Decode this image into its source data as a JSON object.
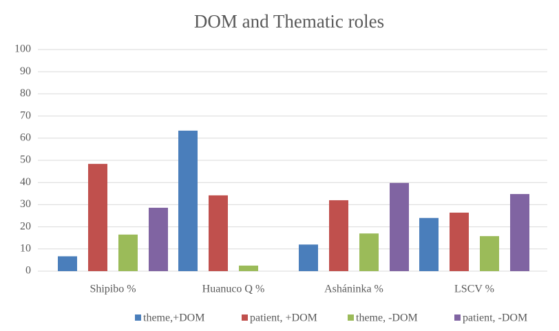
{
  "chart_data": {
    "type": "bar",
    "title": "DOM and Thematic roles",
    "categories": [
      "Shipibo %",
      "Huanuco Q %",
      "Asháninka %",
      "LSCV %"
    ],
    "series": [
      {
        "name": "theme,+DOM",
        "color": "#4a7ebb",
        "values": [
          6.7,
          63.4,
          12,
          24
        ]
      },
      {
        "name": "patient, +DOM",
        "color": "#c0504d",
        "values": [
          48.4,
          34.2,
          32,
          26.4
        ]
      },
      {
        "name": "theme, -DOM",
        "color": "#9bbb59",
        "values": [
          16.5,
          2.5,
          17,
          15.8
        ]
      },
      {
        "name": "patient, -DOM",
        "color": "#8064a2",
        "values": [
          28.6,
          0,
          39.8,
          34.8
        ]
      }
    ],
    "ylim": [
      0,
      100
    ],
    "yticks": [
      0,
      10,
      20,
      30,
      40,
      50,
      60,
      70,
      80,
      90,
      100
    ],
    "grid": true,
    "legend": "bottom"
  }
}
